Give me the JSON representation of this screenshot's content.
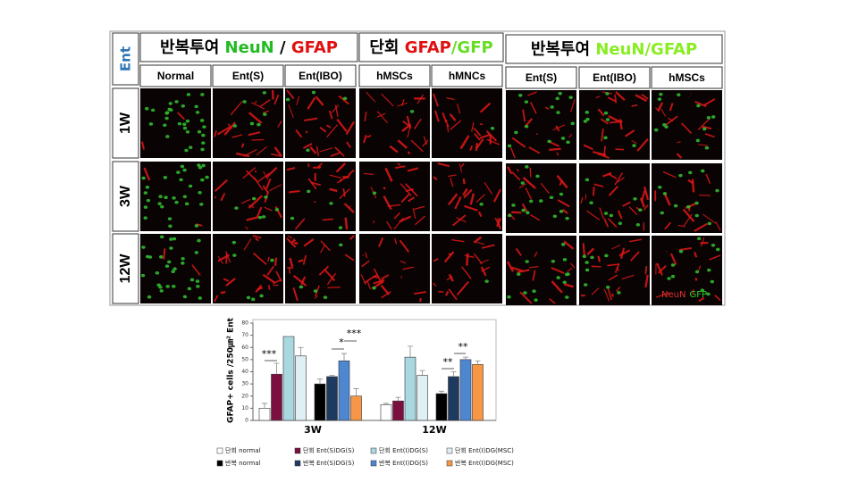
{
  "figure": {
    "ent_label": "Ent",
    "groups": [
      {
        "parts": [
          {
            "text": "반복투여 ",
            "color": "#000000"
          },
          {
            "text": "NeuN",
            "color": "#22bb22"
          },
          {
            "text": " / ",
            "color": "#000000"
          },
          {
            "text": "GFAP",
            "color": "#e01010"
          }
        ]
      },
      {
        "parts": [
          {
            "text": "단회 ",
            "color": "#000000"
          },
          {
            "text": "GFAP",
            "color": "#e01010"
          },
          {
            "text": "/GFP",
            "color": "#66dd22"
          }
        ]
      },
      {
        "parts": [
          {
            "text": "반복투여 ",
            "color": "#000000"
          },
          {
            "text": "NeuN/GFAP",
            "color": "#88ee22"
          }
        ]
      }
    ],
    "columns": [
      "Normal",
      "Ent(S)",
      "Ent(IBO)",
      "hMSCs",
      "hMNCs",
      "Ent(S)",
      "Ent(IBO)",
      "hMSCs"
    ],
    "rows": [
      "1W",
      "3W",
      "12W"
    ],
    "image_legend": [
      {
        "text": "NeuN",
        "color": "#e03030"
      },
      {
        "text": "GFP",
        "color": "#30d030"
      }
    ]
  },
  "chart_data": {
    "type": "bar",
    "y_label": "GFAP+ cells /250㎛² Ent",
    "categories": [
      "3W",
      "12W"
    ],
    "ylim": [
      0,
      80
    ],
    "yticks": [
      0,
      10,
      20,
      30,
      40,
      50,
      60,
      70,
      80
    ],
    "series": [
      {
        "name": "단회 normal",
        "color": "#ffffff",
        "values": [
          10,
          13
        ],
        "errors": [
          4,
          1
        ]
      },
      {
        "name": "단회 Ent(S)DG(S)",
        "color": "#7b1040",
        "values": [
          38,
          16
        ],
        "errors": [
          9,
          3
        ]
      },
      {
        "name": "단회 Ent(I)DG(S)",
        "color": "#a9d8e0",
        "values": [
          69,
          52
        ],
        "errors": [
          0,
          9
        ]
      },
      {
        "name": "단회 Ent(I)DG(MSC)",
        "color": "#dff0f5",
        "values": [
          53,
          37
        ],
        "errors": [
          7,
          4
        ]
      },
      {
        "name": "반복 normal",
        "color": "#000000",
        "values": [
          30,
          22
        ],
        "errors": [
          4,
          2
        ]
      },
      {
        "name": "반복 Ent(S)DG(S)",
        "color": "#1f3a5f",
        "values": [
          36,
          36
        ],
        "errors": [
          1,
          4
        ]
      },
      {
        "name": "반복 Ent(I)DG(S)",
        "color": "#4f86d0",
        "values": [
          49,
          50
        ],
        "errors": [
          6,
          2
        ]
      },
      {
        "name": "반복 Ent(I)DG(MSC)",
        "color": "#f79646",
        "values": [
          20,
          46
        ],
        "errors": [
          6,
          3
        ]
      }
    ],
    "annotations": [
      "***",
      "*",
      "***",
      "**",
      "**"
    ]
  }
}
